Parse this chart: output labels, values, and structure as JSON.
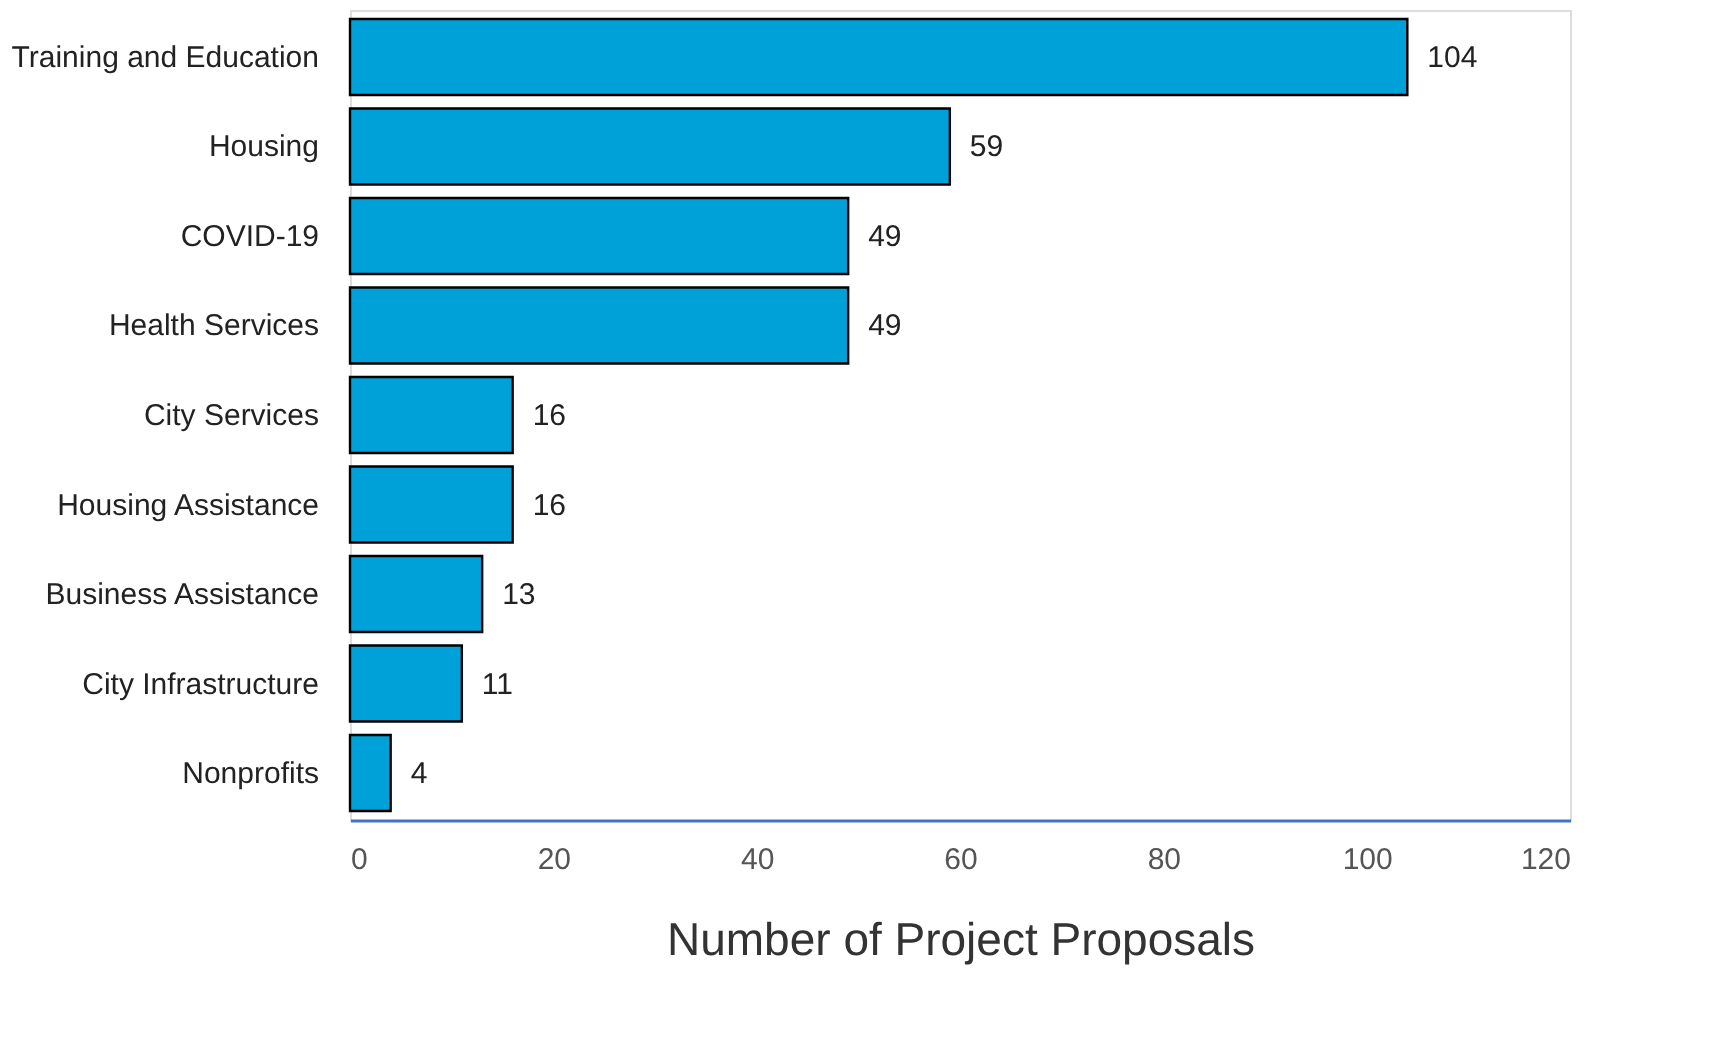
{
  "chart_data": {
    "type": "bar",
    "orientation": "horizontal",
    "xlabel": "Number of Project Proposals",
    "categories": [
      "Training and Education",
      "Housing",
      "COVID-19",
      "Health Services",
      "City Services",
      "Housing Assistance",
      "Business Assistance",
      "City Infrastructure",
      "Nonprofits"
    ],
    "values": [
      104,
      59,
      49,
      49,
      16,
      16,
      13,
      11,
      4
    ],
    "color": "#00a0d8",
    "xlim": [
      0,
      120
    ],
    "xticks": [
      0,
      20,
      40,
      60,
      80,
      100,
      120
    ],
    "data_labels": true,
    "grid": false
  }
}
